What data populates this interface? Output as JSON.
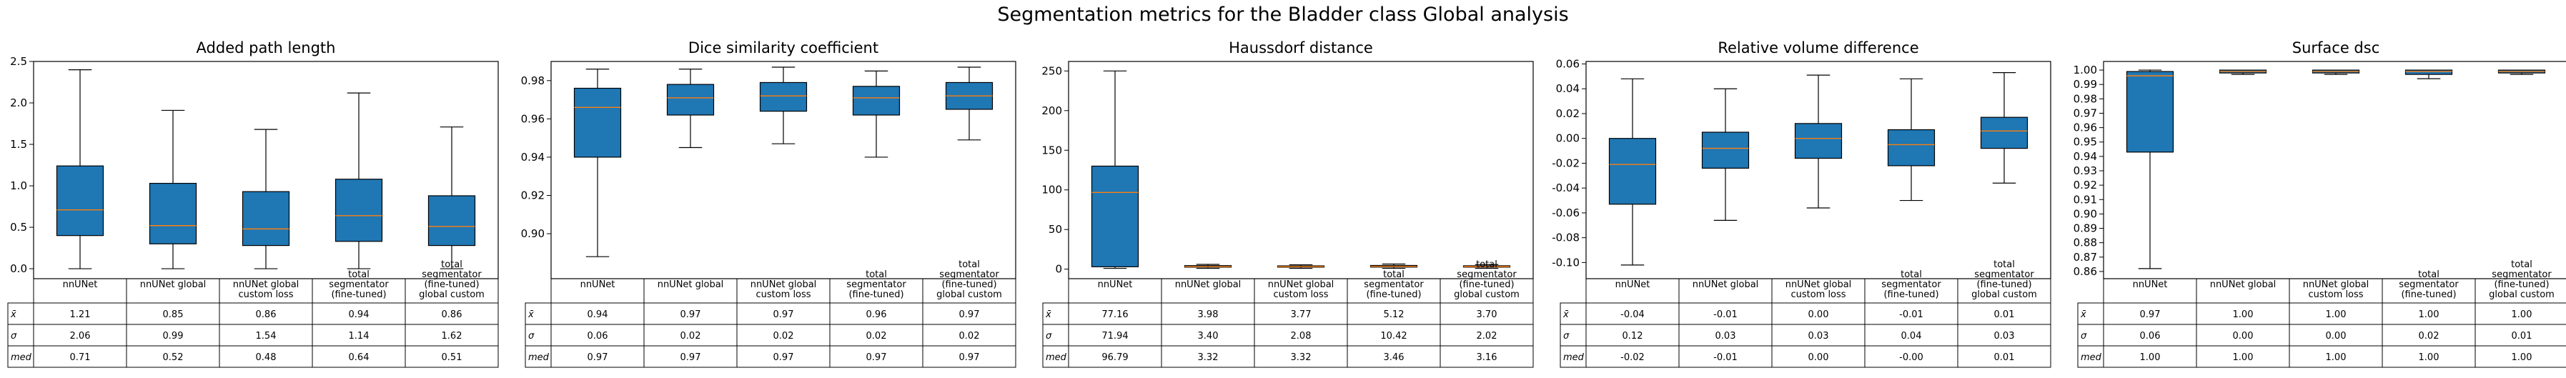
{
  "suptitle": "Segmentation metrics for the Bladder class Global analysis",
  "columns": [
    "nnUNet",
    "nnUNet global",
    "nnUNet global\ncustom loss",
    "total\nsegmentator\n(fine-tuned)",
    "total\nsegmentator\n(fine-tuned)\nglobal custom"
  ],
  "row_labels": [
    "x̄",
    "σ",
    "med"
  ],
  "colors": {
    "box_fill": "#1f77b4",
    "median": "#ff7f0e",
    "line": "#000000"
  },
  "chart_data": [
    {
      "type": "box",
      "title": "Added path length",
      "ylim": [
        -0.12,
        2.5
      ],
      "yticks": [
        0.0,
        0.5,
        1.0,
        1.5,
        2.0,
        2.5
      ],
      "tick_decimals": 1,
      "boxes": [
        {
          "whislo": 0.0,
          "q1": 0.4,
          "med": 0.71,
          "q3": 1.24,
          "whishi": 2.4
        },
        {
          "whislo": 0.0,
          "q1": 0.3,
          "med": 0.52,
          "q3": 1.03,
          "whishi": 1.91
        },
        {
          "whislo": 0.0,
          "q1": 0.28,
          "med": 0.48,
          "q3": 0.93,
          "whishi": 1.68
        },
        {
          "whislo": 0.0,
          "q1": 0.33,
          "med": 0.64,
          "q3": 1.08,
          "whishi": 2.12
        },
        {
          "whislo": 0.0,
          "q1": 0.28,
          "med": 0.51,
          "q3": 0.88,
          "whishi": 1.71
        }
      ],
      "table": [
        [
          "1.21",
          "0.85",
          "0.86",
          "0.94",
          "0.86"
        ],
        [
          "2.06",
          "0.99",
          "1.54",
          "1.14",
          "1.62"
        ],
        [
          "0.71",
          "0.52",
          "0.48",
          "0.64",
          "0.51"
        ]
      ]
    },
    {
      "type": "box",
      "title": "Dice similarity coefficient",
      "ylim": [
        0.8765,
        0.99
      ],
      "yticks": [
        0.9,
        0.92,
        0.94,
        0.96,
        0.98
      ],
      "tick_decimals": 2,
      "boxes": [
        {
          "whislo": 0.888,
          "q1": 0.94,
          "med": 0.966,
          "q3": 0.976,
          "whishi": 0.986
        },
        {
          "whislo": 0.945,
          "q1": 0.962,
          "med": 0.971,
          "q3": 0.978,
          "whishi": 0.986
        },
        {
          "whislo": 0.947,
          "q1": 0.964,
          "med": 0.972,
          "q3": 0.979,
          "whishi": 0.987
        },
        {
          "whislo": 0.94,
          "q1": 0.962,
          "med": 0.971,
          "q3": 0.977,
          "whishi": 0.985
        },
        {
          "whislo": 0.949,
          "q1": 0.965,
          "med": 0.972,
          "q3": 0.979,
          "whishi": 0.987
        }
      ],
      "table": [
        [
          "0.94",
          "0.97",
          "0.97",
          "0.96",
          "0.97"
        ],
        [
          "0.06",
          "0.02",
          "0.02",
          "0.02",
          "0.02"
        ],
        [
          "0.97",
          "0.97",
          "0.97",
          "0.97",
          "0.97"
        ]
      ]
    },
    {
      "type": "box",
      "title": "Haussdorf distance",
      "ylim": [
        -12,
        262
      ],
      "yticks": [
        0,
        50,
        100,
        150,
        200,
        250
      ],
      "tick_decimals": 0,
      "boxes": [
        {
          "whislo": 1.0,
          "q1": 3.0,
          "med": 96.8,
          "q3": 130.0,
          "whishi": 250.0
        },
        {
          "whislo": 1.0,
          "q1": 2.5,
          "med": 3.3,
          "q3": 4.5,
          "whishi": 6.0
        },
        {
          "whislo": 1.0,
          "q1": 2.5,
          "med": 3.3,
          "q3": 4.2,
          "whishi": 5.5
        },
        {
          "whislo": 1.0,
          "q1": 2.6,
          "med": 3.5,
          "q3": 4.7,
          "whishi": 6.5
        },
        {
          "whislo": 1.0,
          "q1": 2.5,
          "med": 3.2,
          "q3": 4.3,
          "whishi": 5.8
        }
      ],
      "table": [
        [
          "77.16",
          "3.98",
          "3.77",
          "5.12",
          "3.70"
        ],
        [
          "71.94",
          "3.40",
          "2.08",
          "10.42",
          "2.02"
        ],
        [
          "96.79",
          "3.32",
          "3.32",
          "3.46",
          "3.16"
        ]
      ]
    },
    {
      "type": "box",
      "title": "Relative volume difference",
      "ylim": [
        -0.113,
        0.062
      ],
      "yticks": [
        -0.1,
        -0.08,
        -0.06,
        -0.04,
        -0.02,
        0.0,
        0.02,
        0.04,
        0.06
      ],
      "tick_decimals": 2,
      "boxes": [
        {
          "whislo": -0.102,
          "q1": -0.053,
          "med": -0.021,
          "q3": 0.0,
          "whishi": 0.048
        },
        {
          "whislo": -0.066,
          "q1": -0.024,
          "med": -0.008,
          "q3": 0.005,
          "whishi": 0.04
        },
        {
          "whislo": -0.056,
          "q1": -0.016,
          "med": 0.0,
          "q3": 0.012,
          "whishi": 0.051
        },
        {
          "whislo": -0.05,
          "q1": -0.022,
          "med": -0.005,
          "q3": 0.007,
          "whishi": 0.048
        },
        {
          "whislo": -0.036,
          "q1": -0.008,
          "med": 0.006,
          "q3": 0.017,
          "whishi": 0.053
        }
      ],
      "table": [
        [
          "-0.04",
          "-0.01",
          "0.00",
          "-0.01",
          "0.01"
        ],
        [
          "0.12",
          "0.03",
          "0.03",
          "0.04",
          "0.03"
        ],
        [
          "-0.02",
          "-0.01",
          "0.00",
          "-0.00",
          "0.01"
        ]
      ]
    },
    {
      "type": "box",
      "title": "Surface dsc",
      "ylim": [
        0.855,
        1.006
      ],
      "yticks": [
        0.86,
        0.87,
        0.88,
        0.89,
        0.9,
        0.91,
        0.92,
        0.93,
        0.94,
        0.95,
        0.96,
        0.97,
        0.98,
        0.99,
        1.0
      ],
      "tick_decimals": 2,
      "boxes": [
        {
          "whislo": 0.862,
          "q1": 0.943,
          "med": 0.996,
          "q3": 0.999,
          "whishi": 1.0
        },
        {
          "whislo": 0.997,
          "q1": 0.998,
          "med": 0.999,
          "q3": 1.0,
          "whishi": 1.0
        },
        {
          "whislo": 0.997,
          "q1": 0.998,
          "med": 0.999,
          "q3": 1.0,
          "whishi": 1.0
        },
        {
          "whislo": 0.994,
          "q1": 0.997,
          "med": 0.999,
          "q3": 1.0,
          "whishi": 1.0
        },
        {
          "whislo": 0.997,
          "q1": 0.998,
          "med": 0.999,
          "q3": 1.0,
          "whishi": 1.0
        }
      ],
      "table": [
        [
          "0.97",
          "1.00",
          "1.00",
          "1.00",
          "1.00"
        ],
        [
          "0.06",
          "0.00",
          "0.00",
          "0.02",
          "0.01"
        ],
        [
          "1.00",
          "1.00",
          "1.00",
          "1.00",
          "1.00"
        ]
      ]
    }
  ]
}
